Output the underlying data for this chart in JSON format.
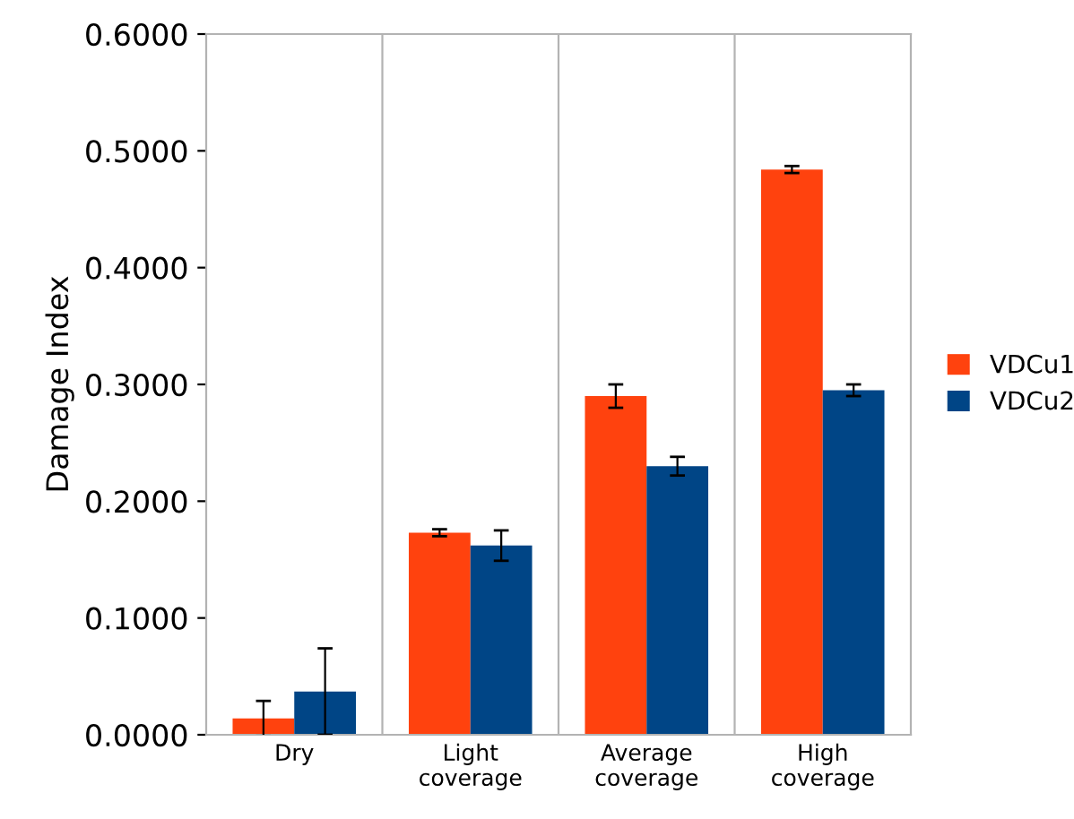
{
  "chart_data": {
    "type": "bar",
    "ylabel": "Damage Index",
    "categories": [
      "Dry",
      "Light\ncoverage",
      "Average\ncoverage",
      "High\ncoverage"
    ],
    "series": [
      {
        "name": "VDCu1",
        "color": "#ff420e",
        "values": [
          0.014,
          0.173,
          0.29,
          0.484
        ],
        "errors": [
          0.015,
          0.003,
          0.01,
          0.003
        ]
      },
      {
        "name": "VDCu2",
        "color": "#004586",
        "values": [
          0.037,
          0.162,
          0.23,
          0.295
        ],
        "errors": [
          0.037,
          0.013,
          0.008,
          0.005
        ]
      }
    ],
    "ylim": [
      0,
      0.6
    ],
    "yticks": [
      {
        "value": 0,
        "label": "0.0000"
      },
      {
        "value": 0.1,
        "label": "0.1000"
      },
      {
        "value": 0.2,
        "label": "0.2000"
      },
      {
        "value": 0.3,
        "label": "0.3000"
      },
      {
        "value": 0.4,
        "label": "0.4000"
      },
      {
        "value": 0.5,
        "label": "0.5000"
      },
      {
        "value": 0.6,
        "label": "0.6000"
      }
    ],
    "grid": "x",
    "legend": "right"
  }
}
